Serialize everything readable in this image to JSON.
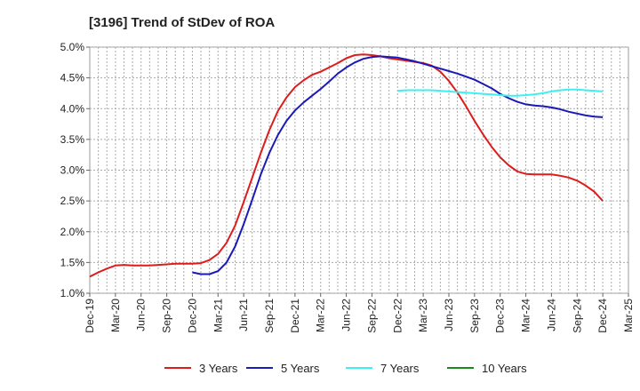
{
  "chart_data": {
    "type": "line",
    "title": "[3196]  Trend of StDev of ROA",
    "xlabel": "",
    "ylabel": "",
    "x_ticks": [
      "Dec-19",
      "Mar-20",
      "Jun-20",
      "Sep-20",
      "Dec-20",
      "Mar-21",
      "Jun-21",
      "Sep-21",
      "Dec-21",
      "Mar-22",
      "Jun-22",
      "Sep-22",
      "Dec-22",
      "Mar-23",
      "Jun-23",
      "Sep-23",
      "Dec-23",
      "Mar-24",
      "Jun-24",
      "Sep-24",
      "Dec-24",
      "Mar-25"
    ],
    "y_ticks": [
      "1.0%",
      "1.5%",
      "2.0%",
      "2.5%",
      "3.0%",
      "3.5%",
      "4.0%",
      "4.5%",
      "5.0%"
    ],
    "ylim": [
      1.0,
      5.0
    ],
    "grid": true,
    "legend_position": "bottom",
    "series": [
      {
        "name": "3 Years",
        "color": "#dd1c1c",
        "x": [
          "2019-12",
          "2020-01",
          "2020-02",
          "2020-03",
          "2020-04",
          "2020-05",
          "2020-06",
          "2020-07",
          "2020-08",
          "2020-09",
          "2020-10",
          "2020-11",
          "2020-12",
          "2021-01",
          "2021-02",
          "2021-03",
          "2021-04",
          "2021-05",
          "2021-06",
          "2021-07",
          "2021-08",
          "2021-09",
          "2021-10",
          "2021-11",
          "2021-12",
          "2022-01",
          "2022-02",
          "2022-03",
          "2022-04",
          "2022-05",
          "2022-06",
          "2022-07",
          "2022-08",
          "2022-09",
          "2022-10",
          "2022-11",
          "2022-12",
          "2023-01",
          "2023-02",
          "2023-03",
          "2023-04",
          "2023-05",
          "2023-06",
          "2023-07",
          "2023-08",
          "2023-09",
          "2023-10",
          "2023-11",
          "2023-12",
          "2024-01",
          "2024-02",
          "2024-03",
          "2024-04",
          "2024-05",
          "2024-06",
          "2024-07",
          "2024-08",
          "2024-09",
          "2024-10",
          "2024-11",
          "2024-12"
        ],
        "values": [
          1.27,
          1.34,
          1.4,
          1.45,
          1.46,
          1.45,
          1.45,
          1.45,
          1.46,
          1.47,
          1.48,
          1.48,
          1.48,
          1.49,
          1.54,
          1.64,
          1.82,
          2.1,
          2.48,
          2.88,
          3.28,
          3.65,
          3.96,
          4.18,
          4.35,
          4.46,
          4.55,
          4.6,
          4.67,
          4.74,
          4.82,
          4.87,
          4.88,
          4.87,
          4.85,
          4.82,
          4.8,
          4.78,
          4.76,
          4.74,
          4.7,
          4.6,
          4.45,
          4.26,
          4.04,
          3.8,
          3.58,
          3.38,
          3.21,
          3.08,
          2.98,
          2.94,
          2.93,
          2.93,
          2.93,
          2.91,
          2.88,
          2.83,
          2.75,
          2.65,
          2.5
        ]
      },
      {
        "name": "5 Years",
        "color": "#1a1ab8",
        "x": [
          "2020-12",
          "2021-01",
          "2021-02",
          "2021-03",
          "2021-04",
          "2021-05",
          "2021-06",
          "2021-07",
          "2021-08",
          "2021-09",
          "2021-10",
          "2021-11",
          "2021-12",
          "2022-01",
          "2022-02",
          "2022-03",
          "2022-04",
          "2022-05",
          "2022-06",
          "2022-07",
          "2022-08",
          "2022-09",
          "2022-10",
          "2022-11",
          "2022-12",
          "2023-01",
          "2023-02",
          "2023-03",
          "2023-04",
          "2023-05",
          "2023-06",
          "2023-07",
          "2023-08",
          "2023-09",
          "2023-10",
          "2023-11",
          "2023-12",
          "2024-01",
          "2024-02",
          "2024-03",
          "2024-04",
          "2024-05",
          "2024-06",
          "2024-07",
          "2024-08",
          "2024-09",
          "2024-10",
          "2024-11",
          "2024-12"
        ],
        "values": [
          1.34,
          1.31,
          1.31,
          1.36,
          1.5,
          1.76,
          2.12,
          2.52,
          2.93,
          3.28,
          3.57,
          3.8,
          3.97,
          4.1,
          4.21,
          4.32,
          4.44,
          4.57,
          4.67,
          4.75,
          4.81,
          4.84,
          4.85,
          4.84,
          4.83,
          4.8,
          4.77,
          4.73,
          4.69,
          4.65,
          4.61,
          4.57,
          4.52,
          4.47,
          4.4,
          4.33,
          4.24,
          4.17,
          4.11,
          4.07,
          4.05,
          4.04,
          4.02,
          3.99,
          3.95,
          3.92,
          3.89,
          3.87,
          3.86
        ]
      },
      {
        "name": "7 Years",
        "color": "#3ef0f0",
        "x": [
          "2022-12",
          "2023-01",
          "2023-02",
          "2023-03",
          "2023-04",
          "2023-05",
          "2023-06",
          "2023-07",
          "2023-08",
          "2023-09",
          "2023-10",
          "2023-11",
          "2023-12",
          "2024-01",
          "2024-02",
          "2024-03",
          "2024-04",
          "2024-05",
          "2024-06",
          "2024-07",
          "2024-08",
          "2024-09",
          "2024-10",
          "2024-11",
          "2024-12"
        ],
        "values": [
          4.29,
          4.3,
          4.3,
          4.3,
          4.3,
          4.29,
          4.28,
          4.27,
          4.26,
          4.25,
          4.24,
          4.23,
          4.22,
          4.21,
          4.21,
          4.22,
          4.23,
          4.25,
          4.28,
          4.3,
          4.31,
          4.31,
          4.3,
          4.29,
          4.28
        ]
      },
      {
        "name": "10 Years",
        "color": "#1a8a1a",
        "x": [],
        "values": []
      }
    ]
  }
}
